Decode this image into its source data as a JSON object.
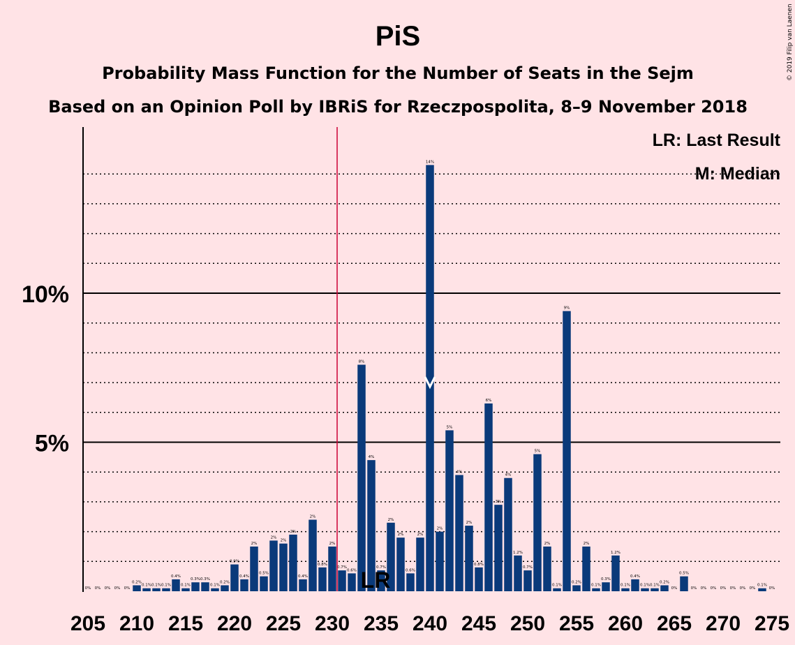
{
  "chart_data": {
    "type": "bar",
    "title": "PiS",
    "subtitle1": "Probability Mass Function for the Number of Seats in the Sejm",
    "subtitle2": "Based on an Opinion Poll by IBRiS for Rzeczpospolita, 8–9 November 2018",
    "copyright": "© 2019 Filip van Laenen",
    "legend": [
      "LR: Last Result",
      "M: Median"
    ],
    "legend_position": "top-right",
    "x": [
      205,
      206,
      207,
      208,
      209,
      210,
      211,
      212,
      213,
      214,
      215,
      216,
      217,
      218,
      219,
      220,
      221,
      222,
      223,
      224,
      225,
      226,
      227,
      228,
      229,
      230,
      231,
      232,
      233,
      234,
      235,
      236,
      237,
      238,
      239,
      240,
      241,
      242,
      243,
      244,
      245,
      246,
      247,
      248,
      249,
      250,
      251,
      252,
      253,
      254,
      255,
      256,
      257,
      258,
      259,
      260,
      261,
      262,
      263,
      264,
      265,
      266,
      267,
      268,
      269,
      270,
      271,
      272,
      273,
      274,
      275
    ],
    "values": [
      0,
      0,
      0,
      0,
      0,
      0.2,
      0.1,
      0.1,
      0.1,
      0.4,
      0.1,
      0.3,
      0.3,
      0.1,
      0.2,
      0.9,
      0.4,
      1.5,
      0.5,
      1.7,
      1.6,
      1.9,
      0.4,
      2.4,
      0.8,
      1.5,
      0.7,
      0.6,
      7.6,
      4.4,
      0.7,
      2.3,
      1.8,
      0.6,
      1.8,
      14.3,
      2.0,
      5.4,
      3.9,
      2.2,
      0.8,
      6.3,
      2.9,
      3.8,
      1.2,
      0.7,
      4.6,
      1.5,
      0.1,
      9.4,
      0.2,
      1.5,
      0.1,
      0.3,
      1.2,
      0.1,
      0.4,
      0.1,
      0.1,
      0.2,
      0,
      0.5,
      0,
      0,
      0,
      0,
      0,
      0,
      0,
      0.1,
      0
    ],
    "value_labels": [
      "0%",
      "0%",
      "0%",
      "0%",
      "0%",
      "0.2%",
      "0.1%",
      "0.1%",
      "0.1%",
      "0.4%",
      "0.1%",
      "0.3%",
      "0.3%",
      "0.1%",
      "0.2%",
      "0.9%",
      "0.4%",
      "2%",
      "0.5%",
      "2%",
      "2%",
      "2%",
      "0.4%",
      "2%",
      "0.8%",
      "2%",
      "0.7%",
      "0.6%",
      "8%",
      "4%",
      "0.7%",
      "2%",
      "2%",
      "0.6%",
      "2%",
      "14%",
      "2%",
      "5%",
      "4%",
      "2%",
      "0.8%",
      "6%",
      "3%",
      "4%",
      "1.2%",
      "0.7%",
      "5%",
      "2%",
      "0.1%",
      "9%",
      "0.2%",
      "2%",
      "0.1%",
      "0.3%",
      "1.2%",
      "0.1%",
      "0.4%",
      "0.1%",
      "0.1%",
      "0.2%",
      "0%",
      "0.5%",
      "0%",
      "0%",
      "0%",
      "0%",
      "0%",
      "0%",
      "0%",
      "0.1%",
      "0%"
    ],
    "xticks": [
      "205",
      "210",
      "215",
      "220",
      "225",
      "230",
      "235",
      "240",
      "245",
      "250",
      "255",
      "260",
      "265",
      "270",
      "275"
    ],
    "yticks": [
      "5%",
      "10%"
    ],
    "ylim": [
      0,
      15.5
    ],
    "last_result_seat": 235,
    "last_result_label": "LR",
    "majority_line_seat": 231,
    "median_seat": 240,
    "median_marker": "M",
    "bar_color": "#0A3A7A",
    "majority_line_color": "#CC0033",
    "grid": "dotted every 1%, solid at 5% and 10%"
  }
}
